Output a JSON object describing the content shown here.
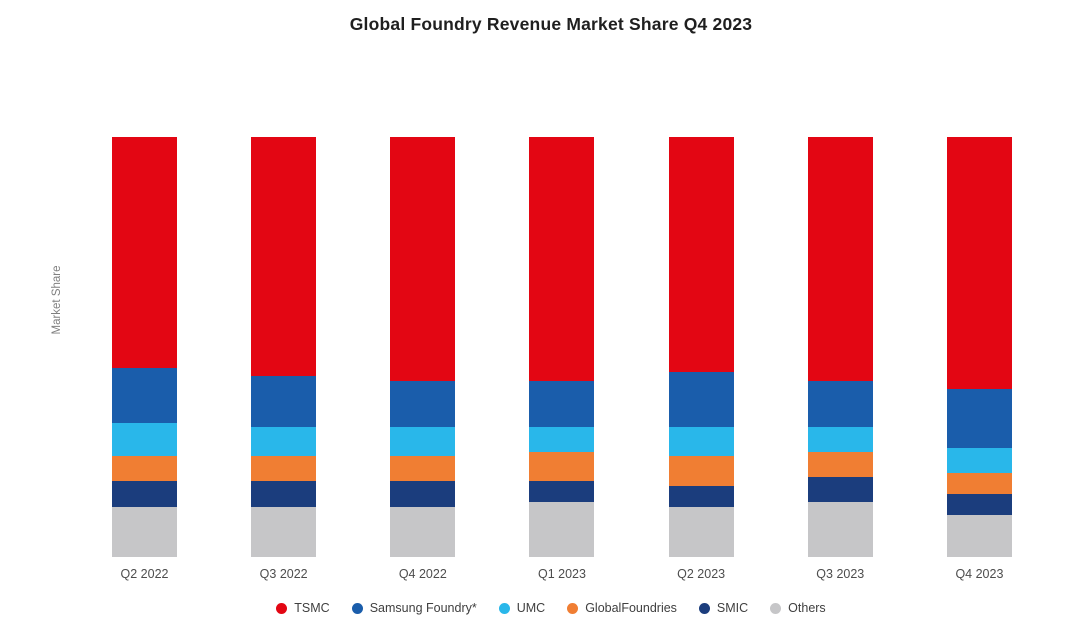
{
  "title": "Global Foundry Revenue Market Share Q4 2023",
  "ylabel": "Market Share",
  "chart_data": {
    "type": "bar",
    "stacked": true,
    "normalized_percent": true,
    "title": "Global Foundry Revenue Market Share Q4 2023",
    "xlabel": "",
    "ylabel": "Market Share",
    "ylim": [
      0,
      100
    ],
    "grid": false,
    "legend_position": "bottom",
    "categories": [
      "Q2 2022",
      "Q3 2022",
      "Q4 2022",
      "Q1 2023",
      "Q2 2023",
      "Q3 2023",
      "Q4 2023"
    ],
    "stack_order_top_to_bottom": [
      "TSMC",
      "Samsung Foundry*",
      "UMC",
      "GlobalFoundries",
      "SMIC",
      "Others"
    ],
    "series": [
      {
        "name": "TSMC",
        "color": "#e30613",
        "values": [
          55,
          57,
          58,
          58,
          56,
          58,
          60
        ]
      },
      {
        "name": "Samsung Foundry*",
        "color": "#1a5dab",
        "values": [
          13,
          12,
          11,
          11,
          13,
          11,
          14
        ]
      },
      {
        "name": "UMC",
        "color": "#29b7ea",
        "values": [
          8,
          7,
          7,
          6,
          7,
          6,
          6
        ]
      },
      {
        "name": "GlobalFoundries",
        "color": "#f07e33",
        "values": [
          6,
          6,
          6,
          7,
          7,
          6,
          5
        ]
      },
      {
        "name": "SMIC",
        "color": "#1b3d7d",
        "values": [
          6,
          6,
          6,
          5,
          5,
          6,
          5
        ]
      },
      {
        "name": "Others",
        "color": "#c6c6c8",
        "values": [
          12,
          12,
          12,
          13,
          12,
          13,
          10
        ]
      }
    ]
  }
}
